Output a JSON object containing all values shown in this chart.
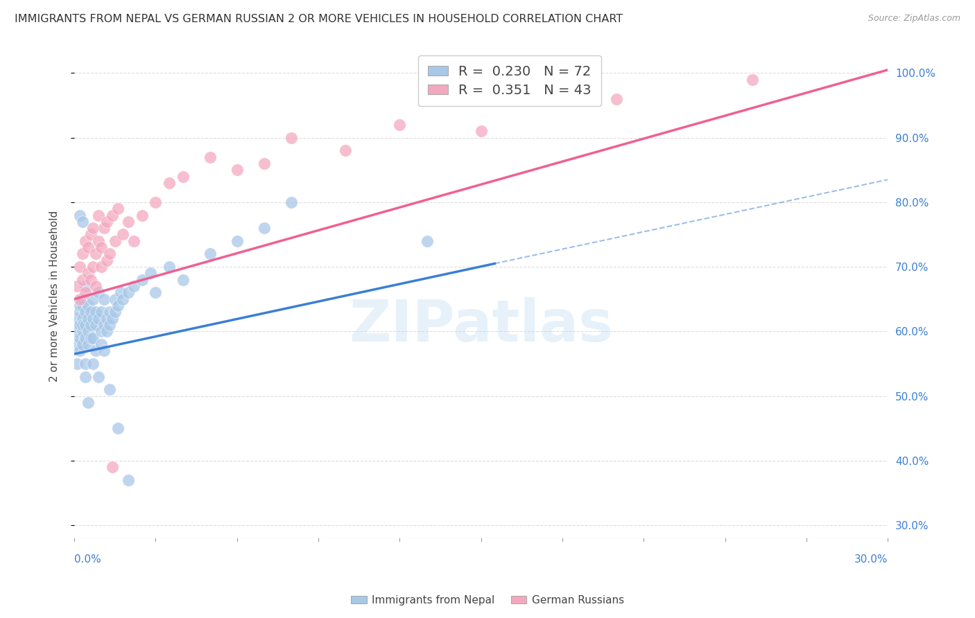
{
  "title": "IMMIGRANTS FROM NEPAL VS GERMAN RUSSIAN 2 OR MORE VEHICLES IN HOUSEHOLD CORRELATION CHART",
  "source": "Source: ZipAtlas.com",
  "ylabel": "2 or more Vehicles in Household",
  "xmin": 0.0,
  "xmax": 0.3,
  "ymin": 0.28,
  "ymax": 1.03,
  "yticks": [
    0.3,
    0.4,
    0.5,
    0.6,
    0.7,
    0.8,
    0.9,
    1.0
  ],
  "ytick_labels": [
    "30.0%",
    "40.0%",
    "50.0%",
    "60.0%",
    "70.0%",
    "80.0%",
    "90.0%",
    "100.0%"
  ],
  "nepal_color": "#a8c8e8",
  "german_color": "#f4a8c0",
  "nepal_R": 0.23,
  "nepal_N": 72,
  "german_R": 0.351,
  "german_N": 43,
  "nepal_line_color": "#3a7fd5",
  "german_line_color": "#f06090",
  "legend_label_nepal": "Immigrants from Nepal",
  "legend_label_german": "German Russians",
  "watermark": "ZIPatlas",
  "nepal_x": [
    0.001,
    0.001,
    0.001,
    0.001,
    0.002,
    0.002,
    0.002,
    0.002,
    0.002,
    0.003,
    0.003,
    0.003,
    0.003,
    0.003,
    0.003,
    0.004,
    0.004,
    0.004,
    0.004,
    0.004,
    0.005,
    0.005,
    0.005,
    0.005,
    0.006,
    0.006,
    0.006,
    0.007,
    0.007,
    0.007,
    0.008,
    0.008,
    0.008,
    0.009,
    0.009,
    0.01,
    0.01,
    0.01,
    0.011,
    0.011,
    0.012,
    0.012,
    0.013,
    0.013,
    0.014,
    0.015,
    0.015,
    0.016,
    0.017,
    0.018,
    0.02,
    0.022,
    0.025,
    0.028,
    0.03,
    0.035,
    0.04,
    0.05,
    0.06,
    0.07,
    0.08,
    0.13,
    0.002,
    0.003,
    0.004,
    0.005,
    0.007,
    0.009,
    0.011,
    0.013,
    0.016,
    0.02
  ],
  "nepal_y": [
    0.58,
    0.6,
    0.62,
    0.55,
    0.59,
    0.61,
    0.63,
    0.57,
    0.64,
    0.6,
    0.62,
    0.64,
    0.58,
    0.61,
    0.65,
    0.59,
    0.63,
    0.67,
    0.61,
    0.55,
    0.6,
    0.62,
    0.58,
    0.64,
    0.59,
    0.63,
    0.61,
    0.62,
    0.65,
    0.59,
    0.61,
    0.63,
    0.57,
    0.62,
    0.66,
    0.6,
    0.63,
    0.58,
    0.61,
    0.65,
    0.62,
    0.6,
    0.63,
    0.61,
    0.62,
    0.63,
    0.65,
    0.64,
    0.66,
    0.65,
    0.66,
    0.67,
    0.68,
    0.69,
    0.66,
    0.7,
    0.68,
    0.72,
    0.74,
    0.76,
    0.8,
    0.74,
    0.78,
    0.77,
    0.53,
    0.49,
    0.55,
    0.53,
    0.57,
    0.51,
    0.45,
    0.37
  ],
  "german_x": [
    0.001,
    0.002,
    0.002,
    0.003,
    0.003,
    0.004,
    0.004,
    0.005,
    0.005,
    0.006,
    0.006,
    0.007,
    0.007,
    0.008,
    0.008,
    0.009,
    0.009,
    0.01,
    0.01,
    0.011,
    0.012,
    0.012,
    0.013,
    0.014,
    0.015,
    0.016,
    0.018,
    0.02,
    0.022,
    0.025,
    0.03,
    0.035,
    0.04,
    0.05,
    0.06,
    0.07,
    0.08,
    0.1,
    0.12,
    0.15,
    0.2,
    0.25,
    0.014
  ],
  "german_y": [
    0.67,
    0.7,
    0.65,
    0.72,
    0.68,
    0.66,
    0.74,
    0.69,
    0.73,
    0.68,
    0.75,
    0.7,
    0.76,
    0.72,
    0.67,
    0.74,
    0.78,
    0.7,
    0.73,
    0.76,
    0.71,
    0.77,
    0.72,
    0.78,
    0.74,
    0.79,
    0.75,
    0.77,
    0.74,
    0.78,
    0.8,
    0.83,
    0.84,
    0.87,
    0.85,
    0.86,
    0.9,
    0.88,
    0.92,
    0.91,
    0.96,
    0.99,
    0.39
  ],
  "nepal_line_x0": 0.0,
  "nepal_line_x1": 0.155,
  "nepal_line_y0": 0.565,
  "nepal_line_y1": 0.705,
  "german_line_x0": 0.0,
  "german_line_x1": 0.3,
  "german_line_y0": 0.65,
  "german_line_y1": 1.005
}
